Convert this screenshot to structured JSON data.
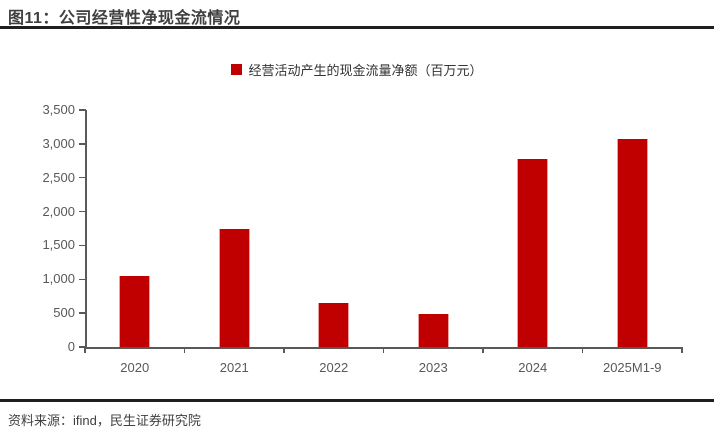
{
  "header": {
    "title": "图11：公司经营性净现金流情况"
  },
  "legend": {
    "label": "经营活动产生的现金流量净额（百万元）"
  },
  "chart_data": {
    "type": "bar",
    "title": "公司经营性净现金流情况",
    "categories": [
      "2020",
      "2021",
      "2022",
      "2023",
      "2024",
      "2025M1-9"
    ],
    "values": [
      1050,
      1740,
      650,
      490,
      2770,
      3070
    ],
    "series_name": "经营活动产生的现金流量净额（百万元）",
    "xlabel": "",
    "ylabel": "",
    "ylim": [
      0,
      3500
    ],
    "ytick_step": 500,
    "ytick_labels": [
      "0",
      "500",
      "1,000",
      "1,500",
      "2,000",
      "2,500",
      "3,000",
      "3,500"
    ],
    "grid": false,
    "legend_position": "top-center",
    "bar_color": "#C00000",
    "axis_color": "#595959",
    "label_color": "#595959"
  },
  "footer": {
    "source": "资料来源：ifind，民生证券研究院"
  },
  "colors": {
    "accent_red": "#C00000",
    "title_text": "#3F3F3F",
    "rule": "#1F1F1F"
  }
}
